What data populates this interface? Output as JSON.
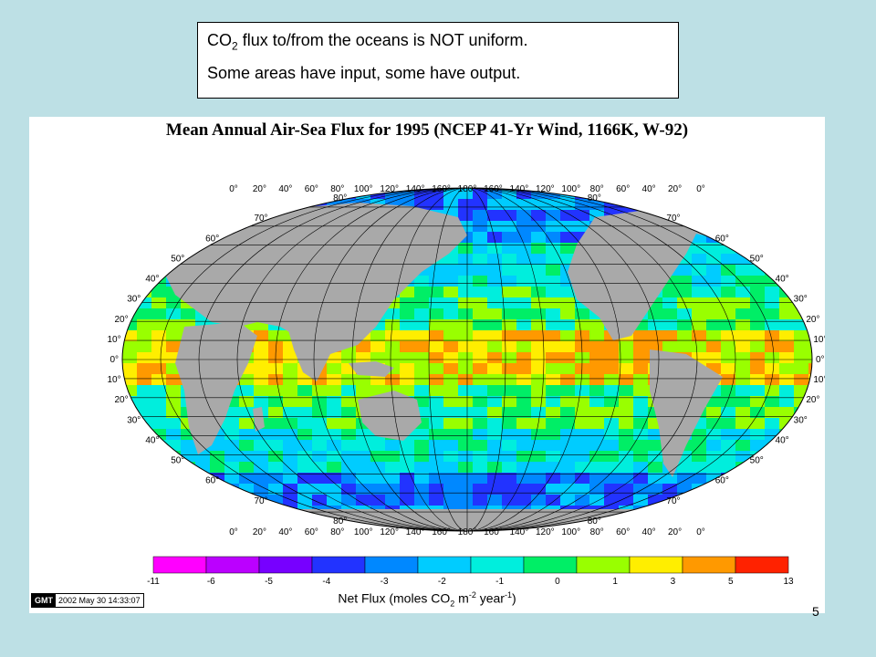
{
  "textbox": {
    "line1_prefix": "CO",
    "line1_sub": "2",
    "line1_suffix": " flux to/from the oceans is NOT uniform.",
    "line2": "Some areas have input, some have output."
  },
  "map": {
    "title": "Mean Annual Air-Sea Flux for 1995 (NCEP 41-Yr Wind, 1166K, W-92)",
    "lat_labels": [
      "80",
      "70",
      "60",
      "50",
      "40",
      "30",
      "20",
      "10",
      "0",
      "10",
      "20",
      "30",
      "40",
      "50",
      "60",
      "70",
      "80"
    ],
    "top_lon_labels": [
      "0",
      "20",
      "40",
      "60",
      "80",
      "100",
      "120",
      "140",
      "160",
      "180",
      "160",
      "140",
      "120",
      "100",
      "80",
      "60",
      "40",
      "20",
      "0"
    ],
    "bottom_lon_labels": [
      "0",
      "20",
      "40",
      "60",
      "80",
      "100",
      "120",
      "140",
      "160",
      "180",
      "160",
      "140",
      "120",
      "100",
      "80",
      "60",
      "40",
      "20",
      "0"
    ],
    "land_color": "#a9a9a9",
    "ocean_background": "#00e5e5"
  },
  "colorbar": {
    "tick_labels": [
      "-11",
      "-6",
      "-5",
      "-4",
      "-3",
      "-2",
      "-1",
      "0",
      "1",
      "3",
      "5",
      "13"
    ],
    "colors": [
      "#ff00ff",
      "#bb00ff",
      "#7700ff",
      "#2233ff",
      "#0088ff",
      "#00ccff",
      "#00eedd",
      "#00ee66",
      "#99ff00",
      "#ffee00",
      "#ff9900",
      "#ff2200"
    ],
    "title_prefix": "Net Flux (moles CO",
    "title_sub": "2",
    "title_mid": " m",
    "title_sup1": "-2",
    "title_mid2": " year",
    "title_sup2": "-1",
    "title_suffix": ")"
  },
  "gmt": {
    "logo": "GMT",
    "timestamp": "2002 May 30 14:33:07"
  },
  "slide_number": "5"
}
